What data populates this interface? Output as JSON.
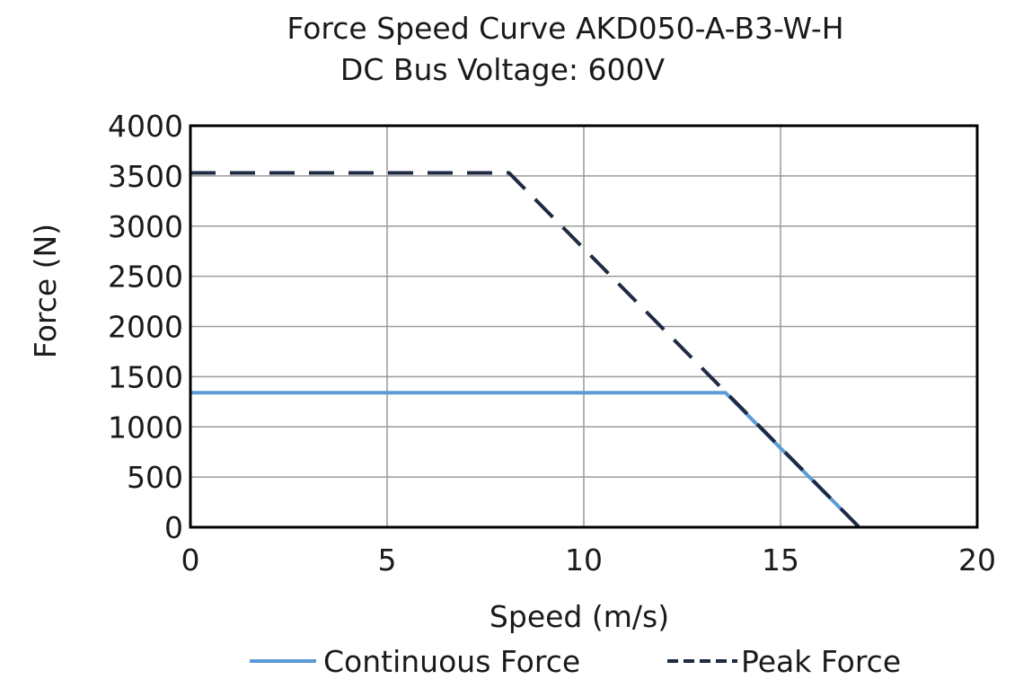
{
  "chart_data": {
    "type": "line",
    "title": "Force Speed Curve AKD050-A-B3-W-H",
    "subtitle": "DC Bus Voltage: 600V",
    "xlabel": "Speed (m/s)",
    "ylabel": "Force (N)",
    "xlim": [
      0,
      20
    ],
    "ylim": [
      0,
      4000
    ],
    "xticks": [
      0,
      5,
      10,
      15,
      20
    ],
    "yticks": [
      0,
      500,
      1000,
      1500,
      2000,
      2500,
      3000,
      3500,
      4000
    ],
    "grid": true,
    "legend_position": "bottom",
    "series": [
      {
        "name": "Continuous Force",
        "color": "#5b9bd5",
        "dash": "solid",
        "x": [
          0,
          13.6,
          17.0
        ],
        "y": [
          1340,
          1340,
          0
        ]
      },
      {
        "name": "Peak Force",
        "color": "#1f2a44",
        "dash": "dashed",
        "x": [
          0,
          8.1,
          17.0
        ],
        "y": [
          3530,
          3530,
          0
        ]
      }
    ]
  }
}
